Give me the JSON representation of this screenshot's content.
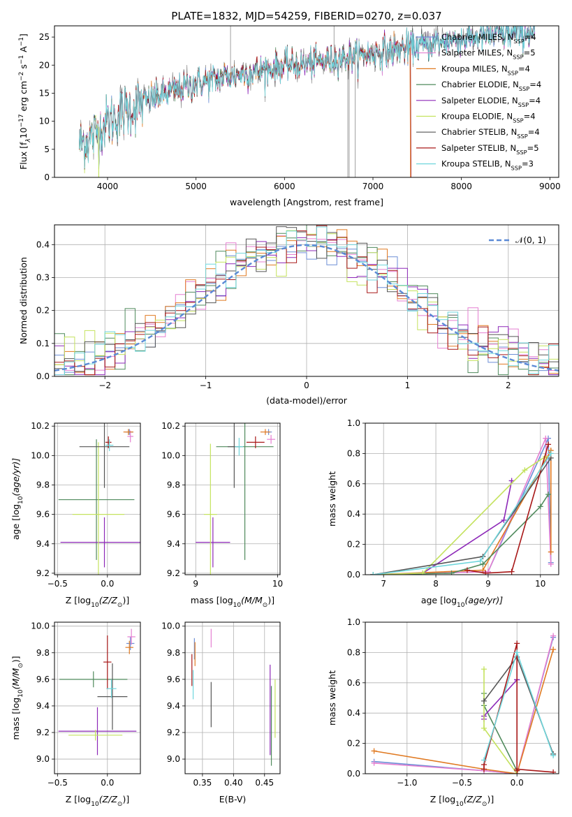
{
  "colors": {
    "Chabrier MILES": "#6c8ed6",
    "Salpeter MILES": "#e57fd1",
    "Kroupa MILES": "#e07a22",
    "Chabrier ELODIE": "#4f8a5c",
    "Salpeter ELODIE": "#8d28b8",
    "Kroupa ELODIE": "#c4e25e",
    "Chabrier STELIB": "#555555",
    "Salpeter STELIB": "#a81818",
    "Kroupa STELIB": "#6fd6dc",
    "gaussian": "#5b8ad6",
    "grid": "#b0b0b0"
  },
  "chart_data": [
    {
      "id": "spectrum",
      "type": "line",
      "title": "PLATE=1832, MJD=54259, FIBERID=0270, z=0.037",
      "xlabel": "wavelength [Angstrom, rest frame]",
      "ylabel_main": "Flux [f",
      "ylabel_sub": "λ",
      "ylabel_mid": "10",
      "ylabel_sup1": "−17",
      "ylabel_tail": " erg cm",
      "ylabel_sup2": "−2",
      "ylabel_tail2": " s",
      "ylabel_sup3": "−1",
      "ylabel_tail3": " A",
      "ylabel_sup4": "−1",
      "ylabel_end": "]",
      "xlim": [
        3400,
        9100
      ],
      "ylim": [
        0,
        27
      ],
      "xticks": [
        4000,
        5000,
        6000,
        7000,
        8000,
        9000
      ],
      "yticks": [
        0,
        5,
        10,
        15,
        20,
        25
      ],
      "grid": false,
      "legend_position": "top-right",
      "continuum": {
        "x": [
          3680,
          3800,
          3900,
          4000,
          4200,
          4400,
          4600,
          4800,
          5000,
          5200,
          5400,
          5600,
          5800,
          6000,
          6200,
          6400,
          6600,
          6800,
          7000,
          7200,
          7400,
          7600,
          7800,
          8000,
          8200,
          8400,
          8600,
          8830
        ],
        "y": [
          6.0,
          7.0,
          8.5,
          10.0,
          12.0,
          13.5,
          14.8,
          15.9,
          16.8,
          17.6,
          18.2,
          18.8,
          19.4,
          20.0,
          20.4,
          20.8,
          21.3,
          21.8,
          22.3,
          22.8,
          23.3,
          23.8,
          24.4,
          24.9,
          25.2,
          25.5,
          25.8,
          26.0
        ]
      },
      "artifacts": [
        {
          "series": "Salpeter STELIB",
          "x": 7430,
          "y": 0,
          "note": "drop"
        },
        {
          "series": "Kroupa MILES",
          "x": 7420,
          "y": 0,
          "note": "drop"
        },
        {
          "series": "Kroupa ELODIE",
          "x": 3900,
          "y": 0,
          "note": "drop"
        }
      ],
      "legend": [
        {
          "name": "Chabrier MILES",
          "base": "Chabrier MILES, N",
          "sub": "SSP",
          "tail": "=4"
        },
        {
          "name": "Salpeter MILES",
          "base": "Salpeter MILES, N",
          "sub": "SSP",
          "tail": "=5"
        },
        {
          "name": "Kroupa MILES",
          "base": "Kroupa MILES, N",
          "sub": "SSP",
          "tail": "=4"
        },
        {
          "name": "Chabrier ELODIE",
          "base": "Chabrier ELODIE, N",
          "sub": "SSP",
          "tail": "=4"
        },
        {
          "name": "Salpeter ELODIE",
          "base": "Salpeter ELODIE, N",
          "sub": "SSP",
          "tail": "=4"
        },
        {
          "name": "Kroupa ELODIE",
          "base": "Kroupa ELODIE, N",
          "sub": "SSP",
          "tail": "=4"
        },
        {
          "name": "Chabrier STELIB",
          "base": "Chabrier STELIB, N",
          "sub": "SSP",
          "tail": "=4"
        },
        {
          "name": "Salpeter STELIB",
          "base": "Salpeter STELIB, N",
          "sub": "SSP",
          "tail": "=5"
        },
        {
          "name": "Kroupa STELIB",
          "base": "Kroupa STELIB, N",
          "sub": "SSP",
          "tail": "=3"
        }
      ]
    },
    {
      "id": "residuals",
      "type": "histogram",
      "xlabel": "(data-model)/error",
      "ylabel": "Normed distribution",
      "xlim": [
        -2.5,
        2.5
      ],
      "ylim": [
        0,
        0.46
      ],
      "xticks": [
        -2,
        -1,
        0,
        1,
        2
      ],
      "xticklabels": [
        "−2",
        "−1",
        "0",
        "1",
        "2"
      ],
      "yticks": [
        0.0,
        0.1,
        0.2,
        0.3,
        0.4
      ],
      "grid": true,
      "legend_position": "top-right",
      "legend_label": "𝒩(0, 1)",
      "bin_width": 0.1,
      "bin_start": -2.5
    },
    {
      "id": "age_vs_Z",
      "type": "errorbar",
      "xlabel_main": "Z [log",
      "xlabel_sub": "10",
      "xlabel_tail": "(Z/Z",
      "xlabel_sub2": "⊙",
      "xlabel_end": ")]",
      "ylabel_main": "age  [log",
      "ylabel_sub": "10",
      "ylabel_tail": "(age/yr)]",
      "xlim": [
        -0.53,
        0.33
      ],
      "ylim": [
        9.19,
        10.22
      ],
      "xticks": [
        -0.5,
        0.0
      ],
      "xticklabels": [
        "−0.5",
        "0.0"
      ],
      "yticks": [
        9.2,
        9.4,
        9.6,
        9.8,
        10.0,
        10.2
      ],
      "grid": true,
      "points": [
        {
          "series": "Chabrier MILES",
          "x": 0.22,
          "y": 10.16,
          "xerr": 0.04,
          "yerr": 0.02
        },
        {
          "series": "Salpeter MILES",
          "x": 0.23,
          "y": 10.13,
          "xerr": 0.03,
          "yerr": 0.04
        },
        {
          "series": "Kroupa MILES",
          "x": 0.21,
          "y": 10.16,
          "xerr": 0.05,
          "yerr": 0.02
        },
        {
          "series": "Chabrier ELODIE",
          "x": -0.11,
          "y": 9.7,
          "xerr": 0.38,
          "yerr": 0.41
        },
        {
          "series": "Salpeter ELODIE",
          "x": -0.03,
          "y": 9.41,
          "xerr": 0.44,
          "yerr": 0.17
        },
        {
          "series": "Kroupa ELODIE",
          "x": -0.09,
          "y": 9.6,
          "xerr": 0.26,
          "yerr": 0.49
        },
        {
          "series": "Chabrier STELIB",
          "x": -0.03,
          "y": 10.06,
          "xerr": 0.25,
          "yerr": 0.28
        },
        {
          "series": "Salpeter STELIB",
          "x": 0.01,
          "y": 10.09,
          "xerr": 0.03,
          "yerr": 0.04
        },
        {
          "series": "Kroupa STELIB",
          "x": 0.02,
          "y": 10.07,
          "xerr": 0.04,
          "yerr": 0.04
        }
      ]
    },
    {
      "id": "age_vs_mass",
      "type": "errorbar",
      "xlabel_main": "mass [log",
      "xlabel_sub": "10",
      "xlabel_tail": "(M/M",
      "xlabel_sub2": "⊙",
      "xlabel_end": ")]",
      "xlim": [
        8.87,
        10.03
      ],
      "ylim": [
        9.19,
        10.22
      ],
      "xticks": [
        9,
        10
      ],
      "xticklabels": [
        "9",
        "10"
      ],
      "yticks": [
        9.2,
        9.4,
        9.6,
        9.8,
        10.0,
        10.2
      ],
      "grid": true,
      "points": [
        {
          "series": "Chabrier MILES",
          "x": 9.89,
          "y": 10.16,
          "xerr": 0.04,
          "yerr": 0.02
        },
        {
          "series": "Salpeter MILES",
          "x": 9.92,
          "y": 10.11,
          "xerr": 0.05,
          "yerr": 0.03
        },
        {
          "series": "Kroupa MILES",
          "x": 9.85,
          "y": 10.16,
          "xerr": 0.06,
          "yerr": 0.02
        },
        {
          "series": "Chabrier ELODIE",
          "x": 9.6,
          "y": 10.06,
          "xerr": 0.35,
          "yerr": 0.77
        },
        {
          "series": "Salpeter ELODIE",
          "x": 9.21,
          "y": 9.41,
          "xerr": 0.21,
          "yerr": 0.17
        },
        {
          "series": "Kroupa ELODIE",
          "x": 9.18,
          "y": 9.6,
          "xerr": 0.08,
          "yerr": 0.48
        },
        {
          "series": "Chabrier STELIB",
          "x": 9.47,
          "y": 10.06,
          "xerr": 0.08,
          "yerr": 0.28
        },
        {
          "series": "Salpeter STELIB",
          "x": 9.73,
          "y": 10.09,
          "xerr": 0.11,
          "yerr": 0.04
        },
        {
          "series": "Kroupa STELIB",
          "x": 9.53,
          "y": 10.06,
          "xerr": 0.05,
          "yerr": 0.06
        }
      ]
    },
    {
      "id": "weight_vs_age",
      "type": "line",
      "xlabel_main": "age  [log",
      "xlabel_sub": "10",
      "xlabel_tail": "(age/yr)]",
      "ylabel": "mass weight",
      "xlim": [
        6.65,
        10.35
      ],
      "ylim": [
        0,
        1.0
      ],
      "xticks": [
        7,
        8,
        9,
        10
      ],
      "yticks": [
        0.0,
        0.2,
        0.4,
        0.6,
        0.8,
        1.0
      ],
      "grid": true,
      "series": [
        {
          "name": "Chabrier MILES",
          "x": [
            6.8,
            9.0,
            10.15,
            10.2
          ],
          "y": [
            0.0,
            0.02,
            0.9,
            0.08
          ]
        },
        {
          "name": "Salpeter MILES",
          "x": [
            6.8,
            9.0,
            10.1,
            10.2
          ],
          "y": [
            0.0,
            0.02,
            0.9,
            0.07
          ]
        },
        {
          "name": "Kroupa MILES",
          "x": [
            6.8,
            8.9,
            10.2,
            10.2
          ],
          "y": [
            0.0,
            0.03,
            0.82,
            0.15
          ]
        },
        {
          "name": "Chabrier ELODIE",
          "x": [
            6.8,
            8.3,
            8.9,
            10.0,
            10.15
          ],
          "y": [
            0.0,
            0.01,
            0.07,
            0.45,
            0.53
          ]
        },
        {
          "name": "Salpeter ELODIE",
          "x": [
            6.8,
            7.75,
            9.3,
            9.45
          ],
          "y": [
            0.0,
            0.01,
            0.36,
            0.62
          ]
        },
        {
          "name": "Kroupa ELODIE",
          "x": [
            6.8,
            7.75,
            9.7,
            10.1
          ],
          "y": [
            0.0,
            0.01,
            0.69,
            0.78
          ]
        },
        {
          "name": "Chabrier STELIB",
          "x": [
            6.8,
            8.9,
            10.2
          ],
          "y": [
            0.0,
            0.12,
            0.77
          ]
        },
        {
          "name": "Salpeter STELIB",
          "x": [
            8.6,
            8.95,
            9.45,
            10.15
          ],
          "y": [
            0.03,
            0.01,
            0.02,
            0.86
          ]
        },
        {
          "name": "Kroupa STELIB",
          "x": [
            6.8,
            8.85,
            10.2
          ],
          "y": [
            0.0,
            0.09,
            0.8
          ]
        }
      ]
    },
    {
      "id": "mass_vs_Z",
      "type": "errorbar",
      "xlabel_main": "Z [log",
      "xlabel_sub": "10",
      "xlabel_tail": "(Z/Z",
      "xlabel_sub2": "⊙",
      "xlabel_end": ")]",
      "ylabel_main": "mass [log",
      "ylabel_sub": "10",
      "ylabel_tail": "(M/M",
      "ylabel_sub2": "⊙",
      "ylabel_end": ")]",
      "xlim": [
        -0.53,
        0.33
      ],
      "ylim": [
        8.89,
        10.03
      ],
      "xticks": [
        -0.5,
        0.0
      ],
      "xticklabels": [
        "−0.5",
        "0.0"
      ],
      "yticks": [
        9.0,
        9.2,
        9.4,
        9.6,
        9.8,
        10.0
      ],
      "grid": true,
      "points": [
        {
          "series": "Chabrier MILES",
          "x": 0.23,
          "y": 9.87,
          "xerr": 0.04,
          "yerr": 0.05
        },
        {
          "series": "Salpeter MILES",
          "x": 0.24,
          "y": 9.92,
          "xerr": 0.04,
          "yerr": 0.06
        },
        {
          "series": "Kroupa MILES",
          "x": 0.22,
          "y": 9.84,
          "xerr": 0.04,
          "yerr": 0.05
        },
        {
          "series": "Chabrier ELODIE",
          "x": -0.14,
          "y": 9.6,
          "xerr": 0.34,
          "yerr": 0.06
        },
        {
          "series": "Salpeter ELODIE",
          "x": -0.1,
          "y": 9.21,
          "xerr": 0.39,
          "yerr": 0.18
        },
        {
          "series": "Kroupa ELODIE",
          "x": -0.12,
          "y": 9.18,
          "xerr": 0.27,
          "yerr": 0.04
        },
        {
          "series": "Chabrier STELIB",
          "x": 0.05,
          "y": 9.47,
          "xerr": 0.15,
          "yerr": 0.25
        },
        {
          "series": "Salpeter STELIB",
          "x": 0.0,
          "y": 9.73,
          "xerr": 0.04,
          "yerr": 0.2
        },
        {
          "series": "Kroupa STELIB",
          "x": 0.04,
          "y": 9.53,
          "xerr": 0.05,
          "yerr": 0.07
        }
      ]
    },
    {
      "id": "mass_vs_EBV",
      "type": "errorbar",
      "xlabel": "E(B-V)",
      "xlim": [
        0.322,
        0.475
      ],
      "ylim": [
        8.89,
        10.03
      ],
      "xticks": [
        0.35,
        0.4,
        0.45
      ],
      "xticklabels": [
        "0.35",
        "0.40",
        "0.45"
      ],
      "yticks": [
        9.0,
        9.2,
        9.4,
        9.6,
        9.8,
        10.0
      ],
      "grid": true,
      "points": [
        {
          "series": "Chabrier MILES",
          "x": 0.337,
          "y": 9.83,
          "xerr": 0.0,
          "yerr": 0.08
        },
        {
          "series": "Salpeter MILES",
          "x": 0.364,
          "y": 9.91,
          "xerr": 0.0,
          "yerr": 0.07
        },
        {
          "series": "Kroupa MILES",
          "x": 0.338,
          "y": 9.79,
          "xerr": 0.0,
          "yerr": 0.09
        },
        {
          "series": "Chabrier ELODIE",
          "x": 0.461,
          "y": 9.25,
          "xerr": 0.0,
          "yerr": 0.3
        },
        {
          "series": "Salpeter ELODIE",
          "x": 0.459,
          "y": 9.37,
          "xerr": 0.0,
          "yerr": 0.34
        },
        {
          "series": "Kroupa ELODIE",
          "x": 0.467,
          "y": 9.38,
          "xerr": 0.0,
          "yerr": 0.22
        },
        {
          "series": "Chabrier STELIB",
          "x": 0.364,
          "y": 9.41,
          "xerr": 0.0,
          "yerr": 0.17
        },
        {
          "series": "Salpeter STELIB",
          "x": 0.333,
          "y": 9.67,
          "xerr": 0.0,
          "yerr": 0.12
        },
        {
          "series": "Kroupa STELIB",
          "x": 0.335,
          "y": 9.56,
          "xerr": 0.0,
          "yerr": 0.11
        }
      ]
    },
    {
      "id": "weight_vs_Z",
      "type": "line",
      "xlabel_main": "Z [log",
      "xlabel_sub": "10",
      "xlabel_tail": "(Z/Z",
      "xlabel_sub2": "⊙",
      "xlabel_end": ")]",
      "ylabel": "mass weight",
      "xlim": [
        -1.38,
        0.38
      ],
      "ylim": [
        0,
        1.0
      ],
      "xticks": [
        -1.0,
        -0.5,
        0.0
      ],
      "xticklabels": [
        "−1.0",
        "−0.5",
        "0.0"
      ],
      "yticks": [
        0.0,
        0.2,
        0.4,
        0.6,
        0.8,
        1.0
      ],
      "grid": true,
      "series": [
        {
          "name": "Chabrier MILES",
          "x": [
            -1.3,
            -0.3,
            0.0,
            0.33
          ],
          "y": [
            0.08,
            0.02,
            0.0,
            0.9
          ]
        },
        {
          "name": "Salpeter MILES",
          "x": [
            -1.3,
            -0.3,
            0.0,
            0.33
          ],
          "y": [
            0.07,
            0.02,
            0.0,
            0.91
          ]
        },
        {
          "name": "Kroupa MILES",
          "x": [
            -1.3,
            -0.3,
            0.0,
            0.33
          ],
          "y": [
            0.15,
            0.03,
            0.0,
            0.82
          ]
        },
        {
          "name": "Chabrier ELODIE",
          "x": [
            -0.3,
            -0.3,
            0.0
          ],
          "y": [
            0.53,
            0.45,
            0.02
          ]
        },
        {
          "name": "Salpeter ELODIE",
          "x": [
            -0.3,
            -0.3,
            0.0,
            0.0
          ],
          "y": [
            0.36,
            0.38,
            0.62,
            0.62
          ]
        },
        {
          "name": "Kroupa ELODIE",
          "x": [
            -0.3,
            -0.3,
            0.0
          ],
          "y": [
            0.69,
            0.3,
            0.0
          ]
        },
        {
          "name": "Chabrier STELIB",
          "x": [
            -0.3,
            0.0,
            0.33
          ],
          "y": [
            0.48,
            0.77,
            0.13
          ]
        },
        {
          "name": "Salpeter STELIB",
          "x": [
            -0.3,
            -0.3,
            0.0,
            0.0,
            0.0,
            0.33
          ],
          "y": [
            0.03,
            0.06,
            0.86,
            0.02,
            0.03,
            0.01
          ]
        },
        {
          "name": "Kroupa STELIB",
          "x": [
            -0.3,
            0.0,
            0.33
          ],
          "y": [
            0.09,
            0.8,
            0.12
          ]
        }
      ]
    }
  ]
}
